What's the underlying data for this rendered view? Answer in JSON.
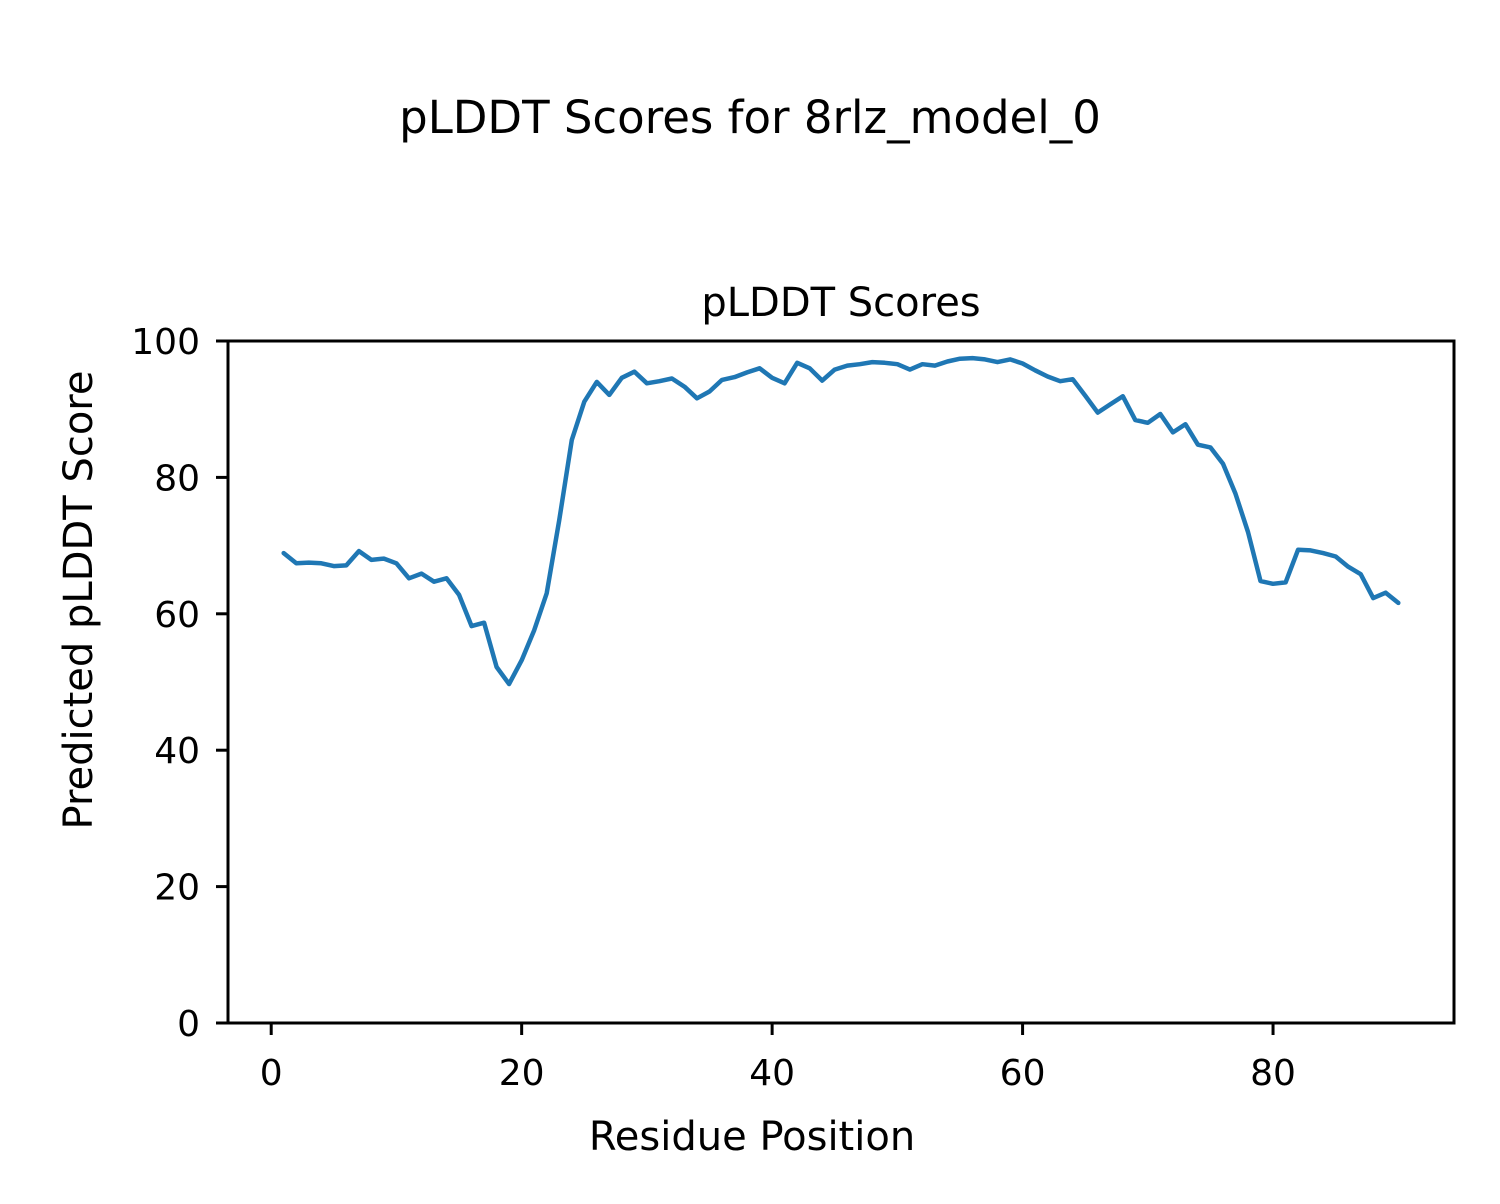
{
  "figure": {
    "suptitle": "pLDDT Scores for 8rlz_model_0"
  },
  "chart_data": {
    "type": "line",
    "title": "pLDDT Scores",
    "xlabel": "Residue Position",
    "ylabel": "Predicted pLDDT Score",
    "xlim": [
      -3.45,
      94.45
    ],
    "ylim": [
      0,
      100
    ],
    "xticks": [
      0,
      20,
      40,
      60,
      80
    ],
    "yticks": [
      0,
      20,
      40,
      60,
      80,
      100
    ],
    "grid": false,
    "legend": "none",
    "line_color": "#1f77b4",
    "line_width": 4.5,
    "series_name": "pLDDT",
    "x": [
      1,
      2,
      3,
      4,
      5,
      6,
      7,
      8,
      9,
      10,
      11,
      12,
      13,
      14,
      15,
      16,
      17,
      18,
      19,
      20,
      21,
      22,
      23,
      24,
      25,
      26,
      27,
      28,
      29,
      30,
      31,
      32,
      33,
      34,
      35,
      36,
      37,
      38,
      39,
      40,
      41,
      42,
      43,
      44,
      45,
      46,
      47,
      48,
      49,
      50,
      51,
      52,
      53,
      54,
      55,
      56,
      57,
      58,
      59,
      60,
      61,
      62,
      63,
      64,
      65,
      66,
      67,
      68,
      69,
      70,
      71,
      72,
      73,
      74,
      75,
      76,
      77,
      78,
      79,
      80,
      81,
      82,
      83,
      84,
      85,
      86,
      87,
      88,
      89,
      90
    ],
    "values": [
      68.9,
      67.4,
      67.5,
      67.4,
      67.0,
      67.1,
      69.2,
      67.9,
      68.1,
      67.4,
      65.2,
      65.9,
      64.7,
      65.2,
      62.8,
      58.2,
      58.7,
      52.2,
      49.7,
      53.2,
      57.6,
      63.0,
      73.7,
      85.5,
      91.1,
      94.0,
      92.1,
      94.6,
      95.5,
      93.8,
      94.1,
      94.5,
      93.3,
      91.6,
      92.6,
      94.3,
      94.7,
      95.4,
      96.0,
      94.6,
      93.8,
      96.8,
      96.0,
      94.2,
      95.8,
      96.4,
      96.6,
      96.9,
      96.8,
      96.6,
      95.8,
      96.6,
      96.4,
      97.0,
      97.4,
      97.5,
      97.3,
      96.9,
      97.3,
      96.7,
      95.7,
      94.8,
      94.1,
      94.4,
      92.0,
      89.5,
      90.7,
      91.9,
      88.4,
      88.0,
      89.3,
      86.6,
      87.8,
      84.8,
      84.4,
      82.0,
      77.6,
      72.0,
      64.8,
      64.4,
      64.6,
      69.4,
      69.3,
      68.9,
      68.4,
      66.9,
      65.8,
      62.3,
      63.1,
      61.6
    ]
  }
}
